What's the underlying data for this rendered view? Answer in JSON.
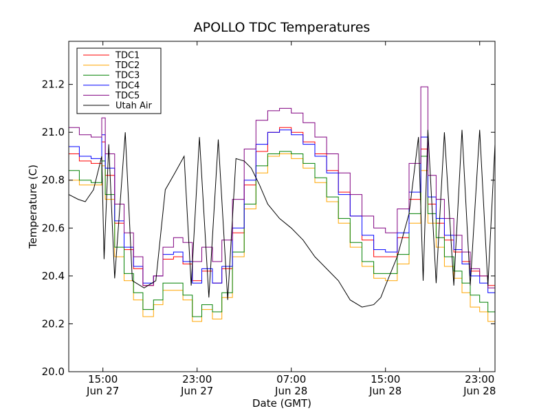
{
  "chart_data": {
    "type": "line",
    "title": "APOLLO TDC Temperatures",
    "xlabel": "Date (GMT)",
    "ylabel": "Temperature (C)",
    "x_unit": "hours since Jun 27 00:00 GMT",
    "xlim": [
      12.1,
      48.3
    ],
    "ylim": [
      20.0,
      21.38
    ],
    "yticks": [
      20.0,
      20.2,
      20.4,
      20.6,
      20.8,
      21.0,
      21.2
    ],
    "ytick_labels": [
      "20.0",
      "20.2",
      "20.4",
      "20.6",
      "20.8",
      "21.0",
      "21.2"
    ],
    "xticks": [
      {
        "x": 15,
        "time": "15:00",
        "date": "Jun 27"
      },
      {
        "x": 23,
        "time": "23:00",
        "date": "Jun 27"
      },
      {
        "x": 31,
        "time": "07:00",
        "date": "Jun 28"
      },
      {
        "x": 39,
        "time": "15:00",
        "date": "Jun 28"
      },
      {
        "x": 47,
        "time": "23:00",
        "date": "Jun 28"
      }
    ],
    "legend_position": "top-left",
    "series": [
      {
        "name": "TDC1",
        "color": "#ff0000",
        "step": true,
        "x": [
          12.1,
          13.0,
          14.0,
          14.9,
          15.2,
          16.0,
          16.8,
          17.6,
          18.4,
          19.3,
          20.1,
          21.0,
          21.8,
          22.6,
          23.4,
          24.3,
          25.1,
          26.0,
          27.0,
          28.0,
          29.0,
          30.0,
          31.0,
          32.0,
          33.0,
          34.0,
          35.0,
          36.0,
          37.0,
          38.0,
          39.0,
          40.0,
          41.0,
          42.0,
          42.6,
          43.3,
          44.0,
          44.8,
          45.5,
          46.2,
          47.0,
          47.7,
          48.3
        ],
        "y": [
          20.91,
          20.88,
          20.87,
          20.96,
          20.82,
          20.62,
          20.51,
          20.43,
          20.36,
          20.4,
          20.47,
          20.48,
          20.45,
          20.38,
          20.42,
          20.37,
          20.43,
          20.58,
          20.78,
          20.92,
          21.0,
          21.02,
          21.0,
          20.96,
          20.91,
          20.84,
          20.75,
          20.65,
          20.55,
          20.48,
          20.48,
          20.56,
          20.72,
          20.93,
          20.7,
          20.62,
          20.55,
          20.5,
          20.46,
          20.42,
          20.4,
          20.36,
          20.32
        ]
      },
      {
        "name": "TDC2",
        "color": "#ffa500",
        "step": true,
        "x": [
          12.1,
          13.0,
          14.0,
          14.9,
          15.2,
          16.0,
          16.8,
          17.6,
          18.4,
          19.3,
          20.1,
          21.0,
          21.8,
          22.6,
          23.4,
          24.3,
          25.1,
          26.0,
          27.0,
          28.0,
          29.0,
          30.0,
          31.0,
          32.0,
          33.0,
          34.0,
          35.0,
          36.0,
          37.0,
          38.0,
          39.0,
          40.0,
          41.0,
          42.0,
          42.6,
          43.3,
          44.0,
          44.8,
          45.5,
          46.2,
          47.0,
          47.7,
          48.3
        ],
        "y": [
          20.8,
          20.78,
          20.78,
          20.86,
          20.72,
          20.48,
          20.38,
          20.3,
          20.23,
          20.28,
          20.34,
          20.34,
          20.3,
          20.21,
          20.26,
          20.22,
          20.31,
          20.48,
          20.68,
          20.83,
          20.9,
          20.91,
          20.89,
          20.85,
          20.79,
          20.71,
          20.62,
          20.52,
          20.44,
          20.39,
          20.38,
          20.45,
          20.62,
          20.84,
          20.62,
          20.52,
          20.44,
          20.39,
          20.33,
          20.27,
          20.25,
          20.21,
          20.2
        ]
      },
      {
        "name": "TDC3",
        "color": "#008000",
        "step": true,
        "x": [
          12.1,
          13.0,
          14.0,
          14.9,
          15.2,
          16.0,
          16.8,
          17.6,
          18.4,
          19.3,
          20.1,
          21.0,
          21.8,
          22.6,
          23.4,
          24.3,
          25.1,
          26.0,
          27.0,
          28.0,
          29.0,
          30.0,
          31.0,
          32.0,
          33.0,
          34.0,
          35.0,
          36.0,
          37.0,
          38.0,
          39.0,
          40.0,
          41.0,
          42.0,
          42.6,
          43.3,
          44.0,
          44.8,
          45.5,
          46.2,
          47.0,
          47.7,
          48.3
        ],
        "y": [
          20.84,
          20.8,
          20.79,
          20.88,
          20.74,
          20.52,
          20.41,
          20.33,
          20.26,
          20.3,
          20.37,
          20.37,
          20.32,
          20.23,
          20.28,
          20.25,
          20.33,
          20.5,
          20.7,
          20.86,
          20.91,
          20.92,
          20.91,
          20.87,
          20.81,
          20.73,
          20.64,
          20.54,
          20.46,
          20.41,
          20.41,
          20.49,
          20.66,
          20.9,
          20.66,
          20.56,
          20.48,
          20.42,
          20.37,
          20.32,
          20.29,
          20.25,
          20.23
        ]
      },
      {
        "name": "TDC4",
        "color": "#0000ff",
        "step": true,
        "x": [
          12.1,
          13.0,
          14.0,
          14.9,
          15.2,
          16.0,
          16.8,
          17.6,
          18.4,
          19.3,
          20.1,
          21.0,
          21.8,
          22.6,
          23.4,
          24.3,
          25.1,
          26.0,
          27.0,
          28.0,
          29.0,
          30.0,
          31.0,
          32.0,
          33.0,
          34.0,
          35.0,
          36.0,
          37.0,
          38.0,
          39.0,
          40.0,
          41.0,
          42.0,
          42.6,
          43.3,
          44.0,
          44.8,
          45.5,
          46.2,
          47.0,
          47.7,
          48.3
        ],
        "y": [
          20.94,
          20.9,
          20.89,
          20.99,
          20.85,
          20.63,
          20.52,
          20.44,
          20.37,
          20.4,
          20.49,
          20.5,
          20.46,
          20.37,
          20.43,
          20.37,
          20.44,
          20.6,
          20.8,
          20.95,
          21.0,
          21.01,
          20.99,
          20.95,
          20.9,
          20.83,
          20.74,
          20.65,
          20.57,
          20.51,
          20.5,
          20.58,
          20.75,
          20.98,
          20.73,
          20.64,
          20.57,
          20.51,
          20.45,
          20.4,
          20.37,
          20.33,
          20.3
        ]
      },
      {
        "name": "TDC5",
        "color": "#800080",
        "step": true,
        "x": [
          12.1,
          13.0,
          14.0,
          14.9,
          15.2,
          16.0,
          16.8,
          17.6,
          18.4,
          19.3,
          20.1,
          21.0,
          21.8,
          22.6,
          23.4,
          24.3,
          25.1,
          26.0,
          27.0,
          28.0,
          29.0,
          30.0,
          31.0,
          32.0,
          33.0,
          34.0,
          35.0,
          36.0,
          37.0,
          38.0,
          39.0,
          40.0,
          41.0,
          42.0,
          42.6,
          43.3,
          44.0,
          44.8,
          45.5,
          46.2,
          47.0,
          47.7,
          48.3
        ],
        "y": [
          21.02,
          20.99,
          20.98,
          21.06,
          20.91,
          20.7,
          20.58,
          20.48,
          20.36,
          20.4,
          20.52,
          20.56,
          20.54,
          20.46,
          20.52,
          20.46,
          20.55,
          20.72,
          20.93,
          21.05,
          21.09,
          21.1,
          21.08,
          21.04,
          20.98,
          20.91,
          20.83,
          20.74,
          20.65,
          20.6,
          20.58,
          20.68,
          20.87,
          21.19,
          20.82,
          20.72,
          20.64,
          20.57,
          20.5,
          20.43,
          20.4,
          20.35,
          20.38
        ]
      },
      {
        "name": "Utah Air",
        "color": "#000000",
        "step": false,
        "x": [
          12.1,
          12.9,
          13.5,
          14.2,
          14.9,
          15.1,
          15.5,
          16.0,
          16.9,
          17.5,
          18.5,
          19.5,
          20.3,
          21.0,
          21.9,
          22.5,
          23.2,
          24.0,
          24.8,
          25.6,
          26.3,
          27.0,
          27.6,
          28.3,
          29.0,
          30.0,
          31.0,
          32.0,
          33.0,
          34.0,
          35.0,
          36.0,
          37.0,
          38.0,
          38.6,
          39.0,
          40.0,
          41.0,
          41.8,
          42.2,
          42.6,
          43.3,
          44.0,
          44.8,
          45.5,
          46.2,
          47.0,
          47.7,
          48.3
        ],
        "y": [
          20.74,
          20.72,
          20.71,
          20.76,
          20.9,
          20.47,
          20.95,
          20.39,
          21.0,
          20.38,
          20.35,
          20.38,
          20.76,
          20.82,
          20.9,
          20.36,
          20.98,
          20.31,
          20.97,
          20.3,
          20.89,
          20.88,
          20.85,
          20.78,
          20.7,
          20.64,
          20.6,
          20.55,
          20.48,
          20.43,
          20.38,
          20.3,
          20.27,
          20.28,
          20.31,
          20.36,
          20.48,
          20.66,
          20.98,
          20.38,
          21.01,
          20.37,
          21.0,
          20.36,
          21.01,
          20.36,
          21.01,
          20.36,
          20.95
        ]
      }
    ]
  }
}
